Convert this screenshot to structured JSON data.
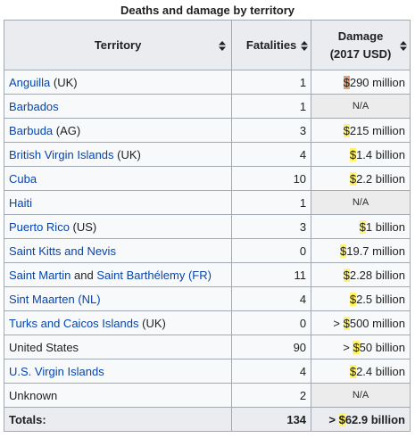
{
  "caption": "Deaths and damage by territory",
  "header": {
    "territory": "Territory",
    "fatalities": "Fatalities",
    "damage": [
      "Damage",
      "(2017 USD)"
    ]
  },
  "rows": [
    {
      "territory": [
        {
          "text": "Anguilla",
          "link": true
        },
        {
          "text": "(UK)",
          "link": false
        }
      ],
      "fatalities": "1",
      "damage": {
        "text": "$290 million",
        "highlight": "#e8a070"
      }
    },
    {
      "territory": [
        {
          "text": "Barbados",
          "link": true
        }
      ],
      "fatalities": "1",
      "damage": {
        "text": "N/A",
        "na": true
      }
    },
    {
      "territory": [
        {
          "text": "Barbuda",
          "link": true
        },
        {
          "text": "(AG)",
          "link": false
        }
      ],
      "fatalities": "3",
      "damage": {
        "text": "$215 million",
        "highlight": "#fff36b"
      }
    },
    {
      "territory": [
        {
          "text": "British Virgin Islands",
          "link": true
        },
        {
          "text": "(UK)",
          "link": false
        }
      ],
      "fatalities": "4",
      "damage": {
        "text": "$1.4 billion",
        "highlight": "#fff36b"
      }
    },
    {
      "territory": [
        {
          "text": "Cuba",
          "link": true
        }
      ],
      "fatalities": "10",
      "damage": {
        "text": "$2.2 billion",
        "highlight": "#fff36b"
      }
    },
    {
      "territory": [
        {
          "text": "Haiti",
          "link": true
        }
      ],
      "fatalities": "1",
      "damage": {
        "text": "N/A",
        "na": true
      }
    },
    {
      "territory": [
        {
          "text": "Puerto Rico",
          "link": true
        },
        {
          "text": "(US)",
          "link": false
        }
      ],
      "fatalities": "3",
      "damage": {
        "text": "$1 billion",
        "highlight": "#fff36b"
      }
    },
    {
      "territory": [
        {
          "text": "Saint Kitts and Nevis",
          "link": true
        }
      ],
      "fatalities": "0",
      "damage": {
        "text": "$19.7 million",
        "highlight": "#fff36b"
      }
    },
    {
      "territory": [
        {
          "text": "Saint Martin",
          "link": true
        },
        {
          "text": "and",
          "link": false
        },
        {
          "text": "Saint Barthélemy",
          "link": true
        },
        {
          "text": "(FR)",
          "link": true
        }
      ],
      "fatalities": "11",
      "damage": {
        "text": "$2.28 billion",
        "highlight": "#fff36b"
      }
    },
    {
      "territory": [
        {
          "text": "Sint Maarten",
          "link": true
        },
        {
          "text": "(NL)",
          "link": true
        }
      ],
      "fatalities": "4",
      "damage": {
        "text": "$2.5 billion",
        "highlight": "#fff36b"
      }
    },
    {
      "territory": [
        {
          "text": "Turks and Caicos Islands",
          "link": true
        },
        {
          "text": "(UK)",
          "link": false
        }
      ],
      "fatalities": "0",
      "damage": {
        "prefix": ">",
        "text": "$500 million",
        "highlight": "#fff36b"
      }
    },
    {
      "territory": [
        {
          "text": "United States",
          "link": false
        }
      ],
      "fatalities": "90",
      "damage": {
        "prefix": ">",
        "text": "$50 billion",
        "highlight": "#fff36b"
      }
    },
    {
      "territory": [
        {
          "text": "U.S. Virgin Islands",
          "link": true
        }
      ],
      "fatalities": "4",
      "damage": {
        "text": "$2.4 billion",
        "highlight": "#fff36b"
      }
    },
    {
      "territory": [
        {
          "text": "Unknown",
          "link": false
        }
      ],
      "fatalities": "2",
      "damage": {
        "text": "N/A",
        "na": true
      }
    }
  ],
  "totals": {
    "label": "Totals:",
    "fatalities": "134",
    "damage": {
      "prefix": ">",
      "text": "$62.9 billion",
      "highlight": "#fff36b"
    }
  }
}
